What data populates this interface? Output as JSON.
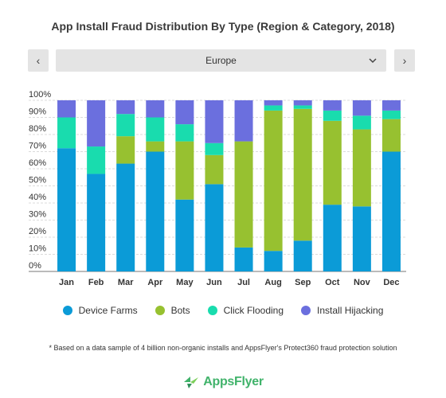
{
  "title": "App Install Fraud Distribution By Type (Region & Category, 2018)",
  "nav": {
    "prev": "‹",
    "next": "›"
  },
  "region": {
    "selected": "Europe"
  },
  "chart_data": {
    "type": "bar",
    "stacked": true,
    "categories": [
      "Jan",
      "Feb",
      "Mar",
      "Apr",
      "May",
      "Jun",
      "Jul",
      "Aug",
      "Sep",
      "Oct",
      "Nov",
      "Dec"
    ],
    "series": [
      {
        "name": "Device Farms",
        "color": "#0b9bd7",
        "values": [
          72,
          57,
          63,
          70,
          42,
          51,
          14,
          12,
          18,
          39,
          38,
          70
        ]
      },
      {
        "name": "Bots",
        "color": "#97c130",
        "values": [
          0,
          0,
          16,
          6,
          34,
          17,
          62,
          82,
          77,
          49,
          45,
          19
        ]
      },
      {
        "name": "Click Flooding",
        "color": "#19dcae",
        "values": [
          18,
          16,
          13,
          14,
          10,
          7,
          0,
          3,
          2,
          6,
          8,
          5
        ]
      },
      {
        "name": "Install Hijacking",
        "color": "#6b6fde",
        "values": [
          10,
          27,
          8,
          10,
          14,
          25,
          24,
          3,
          3,
          6,
          9,
          6
        ]
      }
    ],
    "yticks": [
      "0%",
      "10%",
      "20%",
      "30%",
      "40%",
      "50%",
      "60%",
      "70%",
      "80%",
      "90%",
      "100%"
    ],
    "ylim": [
      0,
      100
    ],
    "grid": true,
    "legend_position": "bottom"
  },
  "footnote": "* Based on a data sample of 4 billion non-organic installs and AppsFlyer's Protect360 fraud protection solution",
  "brand": {
    "name": "AppsFlyer"
  }
}
